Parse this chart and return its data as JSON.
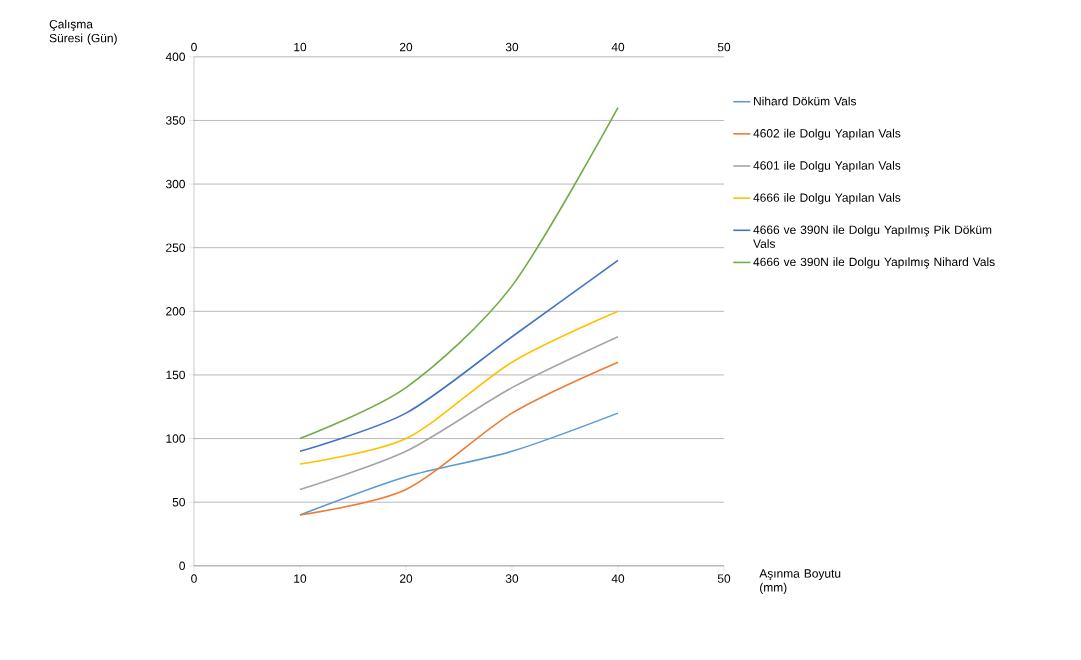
{
  "chart_data": {
    "type": "line",
    "xlabel": "Aşınma Boyutu (mm)",
    "ylabel": "Çalışma Süresi (Gün)",
    "x": [
      10,
      20,
      30,
      40
    ],
    "series": [
      {
        "name": "Nihard Döküm Vals",
        "color": "#5b9bd5",
        "values": [
          40,
          70,
          90,
          120
        ]
      },
      {
        "name": "4602 ile Dolgu Yapılan Vals",
        "color": "#ed7d31",
        "values": [
          40,
          60,
          120,
          160
        ]
      },
      {
        "name": "4601 ile Dolgu Yapılan Vals",
        "color": "#a5a5a5",
        "values": [
          60,
          90,
          140,
          180
        ]
      },
      {
        "name": "4666 ile Dolgu Yapılan Vals",
        "color": "#ffc000",
        "values": [
          80,
          100,
          160,
          200
        ]
      },
      {
        "name": "4666 ve 390N ile Dolgu Yapılmış Pik Döküm Vals",
        "color": "#4472c4",
        "values": [
          90,
          120,
          180,
          240
        ]
      },
      {
        "name": "4666 ve 390N ile Dolgu Yapılmış Nihard Vals",
        "color": "#70ad47",
        "values": [
          100,
          140,
          220,
          360
        ]
      }
    ],
    "xlim": [
      0,
      50
    ],
    "xticks": [
      0,
      10,
      20,
      30,
      40,
      50
    ],
    "x2lim": [
      0,
      50
    ],
    "x2ticks": [
      0,
      10,
      20,
      30,
      40,
      50
    ],
    "ylim": [
      0,
      400
    ],
    "yticks": [
      0,
      50,
      100,
      150,
      200,
      250,
      300,
      350,
      400
    ],
    "grid": "y",
    "legend": "right",
    "marker": "none",
    "line_style": "solid"
  }
}
